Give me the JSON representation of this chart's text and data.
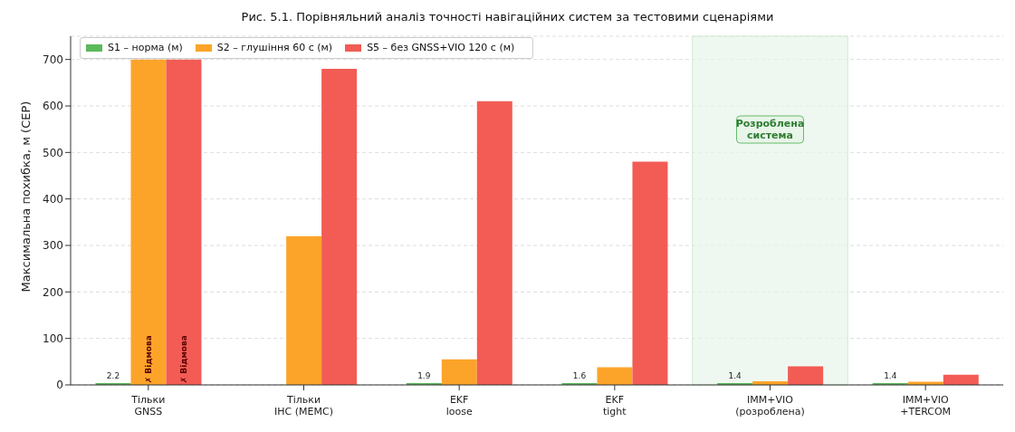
{
  "chart_data": {
    "type": "bar",
    "title": "Рис. 5.1. Порівняльний аналіз точності навігаційних систем за тестовими сценаріями",
    "ylabel": "Максимальна похибка, м (CEP)",
    "categories": [
      "Тільки\nGNSS",
      "Тільки\nІНС (МЕМС)",
      "EKF\nloose",
      "EKF\ntight",
      "IMM+VIO\n(розроблена)",
      "IMM+VIO\n+TERCOM"
    ],
    "series": [
      {
        "name": "S1 – норма (м)",
        "color": "#5cb85c",
        "values": [
          2.2,
          null,
          1.9,
          1.6,
          1.4,
          1.4
        ],
        "value_labels": [
          "2.2",
          null,
          "1.9",
          "1.6",
          "1.4",
          "1.4"
        ]
      },
      {
        "name": "S2 – глушіння 60 с (м)",
        "color": "#fca42a",
        "values": [
          700,
          320,
          55,
          38,
          8,
          7
        ]
      },
      {
        "name": "S5 – без GNSS+VIO 120 с (м)",
        "color": "#f25c54",
        "values": [
          700,
          680,
          610,
          480,
          40,
          22
        ]
      }
    ],
    "ylim": [
      0,
      750
    ],
    "yticks": [
      0,
      100,
      200,
      300,
      400,
      500,
      600,
      700
    ],
    "grid": "y",
    "legend": "top left",
    "bands": [
      {
        "axis": "x",
        "from": "IMM+VIO\n(розроблена)",
        "to": "IMM+VIO\n(розроблена)",
        "label": "Розроблена\nсистема",
        "color": "#e8f5e9"
      }
    ],
    "annotations": [
      "✗ Відмова",
      "✗ Відмова"
    ]
  }
}
